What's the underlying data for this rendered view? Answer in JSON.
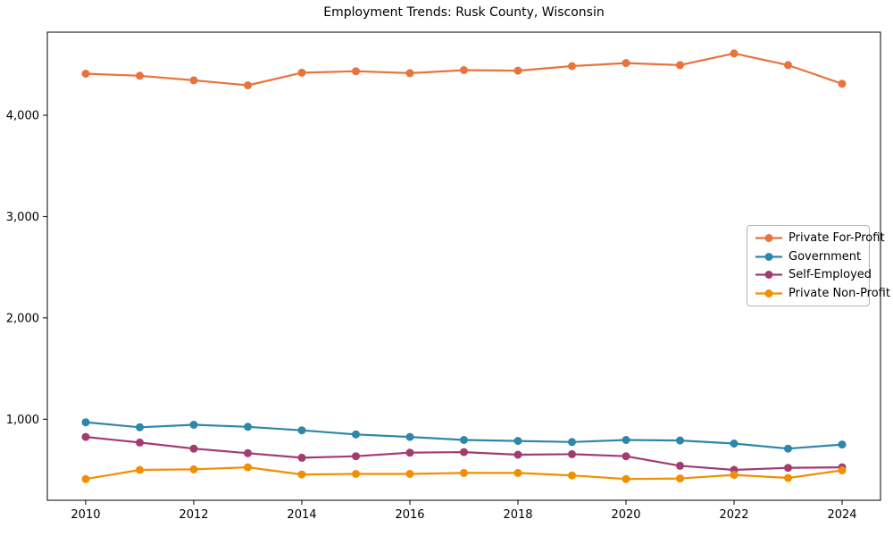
{
  "chart_data": {
    "type": "line",
    "title": "Employment Trends: Rusk County, Wisconsin",
    "xlabel": "",
    "ylabel": "",
    "x": [
      2010,
      2011,
      2012,
      2013,
      2014,
      2015,
      2016,
      2017,
      2018,
      2019,
      2020,
      2021,
      2022,
      2023,
      2024
    ],
    "series": [
      {
        "name": "Private For-Profit",
        "color": "#e8743b",
        "values": [
          4410,
          4390,
          4345,
          4295,
          4420,
          4435,
          4415,
          4445,
          4440,
          4485,
          4515,
          4495,
          4610,
          4495,
          4310
        ]
      },
      {
        "name": "Government",
        "color": "#2e86ab",
        "values": [
          970,
          920,
          945,
          925,
          890,
          850,
          825,
          795,
          785,
          775,
          795,
          790,
          760,
          710,
          750
        ]
      },
      {
        "name": "Self-Employed",
        "color": "#a23b72",
        "values": [
          825,
          770,
          710,
          665,
          620,
          635,
          670,
          675,
          650,
          655,
          635,
          540,
          500,
          520,
          525
        ]
      },
      {
        "name": "Private Non-Profit",
        "color": "#f18f01",
        "values": [
          410,
          500,
          505,
          525,
          455,
          460,
          460,
          470,
          470,
          445,
          410,
          415,
          450,
          420,
          495
        ]
      }
    ],
    "x_ticks": [
      {
        "value": 2010,
        "label": "2010"
      },
      {
        "value": 2012,
        "label": "2012"
      },
      {
        "value": 2014,
        "label": "2014"
      },
      {
        "value": 2016,
        "label": "2016"
      },
      {
        "value": 2018,
        "label": "2018"
      },
      {
        "value": 2020,
        "label": "2020"
      },
      {
        "value": 2022,
        "label": "2022"
      },
      {
        "value": 2024,
        "label": "2024"
      }
    ],
    "y_ticks": [
      {
        "value": 1000,
        "label": "1,000"
      },
      {
        "value": 2000,
        "label": "2,000"
      },
      {
        "value": 3000,
        "label": "3,000"
      },
      {
        "value": 4000,
        "label": "4,000"
      }
    ],
    "xlim": [
      2009.29,
      2024.71
    ],
    "ylim": [
      200,
      4820
    ],
    "grid": false,
    "legend_position": "center right",
    "axis_color": "#000000",
    "background_color": "#ffffff"
  }
}
